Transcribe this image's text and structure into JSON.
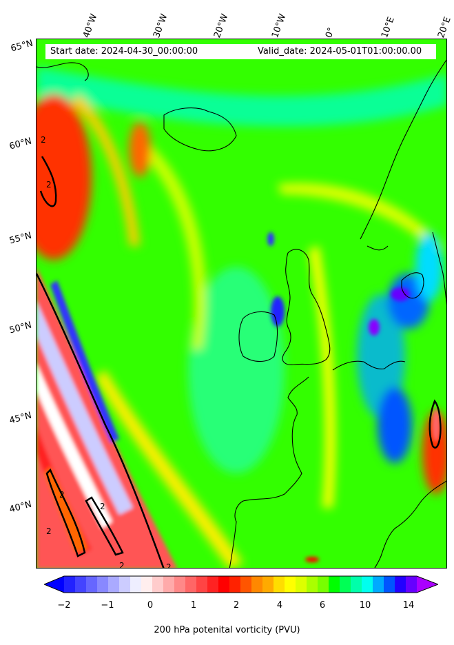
{
  "map": {
    "start_date_label": "Start date: 2024-04-30_00:00:00",
    "valid_date_label": "Valid_date: 2024-05-01T01:00:00.00",
    "lon_labels": [
      "40°W",
      "30°W",
      "20°W",
      "10°W",
      "0°",
      "10°E",
      "20°E"
    ],
    "lat_labels": [
      "65°N",
      "60°N",
      "55°N",
      "50°N",
      "45°N",
      "40°N"
    ],
    "contour_labels": [
      "2",
      "2",
      "2",
      "2",
      "2",
      "2",
      "2"
    ]
  },
  "colorbar": {
    "label": "200 hPa potenital vorticity (PVU)",
    "ticks": [
      "−2",
      "−1",
      "0",
      "1",
      "2",
      "4",
      "6",
      "10",
      "14"
    ],
    "levels": [
      -2,
      -1.75,
      -1.5,
      -1.25,
      -1,
      -0.75,
      -0.5,
      -0.25,
      0,
      0.25,
      0.5,
      0.75,
      1,
      1.25,
      1.5,
      1.75,
      2,
      2.5,
      3,
      3.5,
      4,
      4.5,
      5,
      5.5,
      6,
      7,
      8,
      9,
      10,
      11,
      12,
      13,
      14,
      15
    ],
    "colors": [
      "#0000ff",
      "#2222ff",
      "#4444ff",
      "#6666ff",
      "#8888ff",
      "#aaaaff",
      "#ccccff",
      "#eeeeff",
      "#ffeeee",
      "#ffcccc",
      "#ffaaaa",
      "#ff8888",
      "#ff6666",
      "#ff4444",
      "#ff2222",
      "#ff0000",
      "#ff2200",
      "#ff5500",
      "#ff8800",
      "#ffaa00",
      "#ffdd00",
      "#ffff00",
      "#ddff00",
      "#aaff00",
      "#77ff00",
      "#00ff00",
      "#00ff55",
      "#00ffaa",
      "#00ffee",
      "#00aaff",
      "#0055ff",
      "#2200ff",
      "#6600ff",
      "#aa00ff"
    ]
  }
}
